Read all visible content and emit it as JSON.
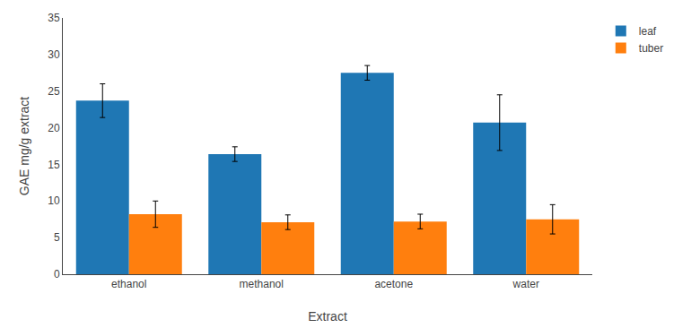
{
  "chart_data": {
    "type": "bar",
    "categories": [
      "ethanol",
      "methanol",
      "acetone",
      "water"
    ],
    "series": [
      {
        "name": "leaf",
        "values": [
          23.7,
          16.4,
          27.5,
          20.7
        ],
        "errors": [
          2.3,
          1.0,
          1.0,
          3.8
        ]
      },
      {
        "name": "tuber",
        "values": [
          8.2,
          7.1,
          7.2,
          7.5
        ],
        "errors": [
          1.8,
          1.0,
          1.0,
          2.0
        ]
      }
    ],
    "xlabel": "Extract",
    "ylabel": "GAE mg/g extract",
    "ylim": [
      0,
      35
    ],
    "yticks": [
      0,
      5,
      10,
      15,
      20,
      25,
      30,
      35
    ],
    "grid": false,
    "legend": "right"
  }
}
